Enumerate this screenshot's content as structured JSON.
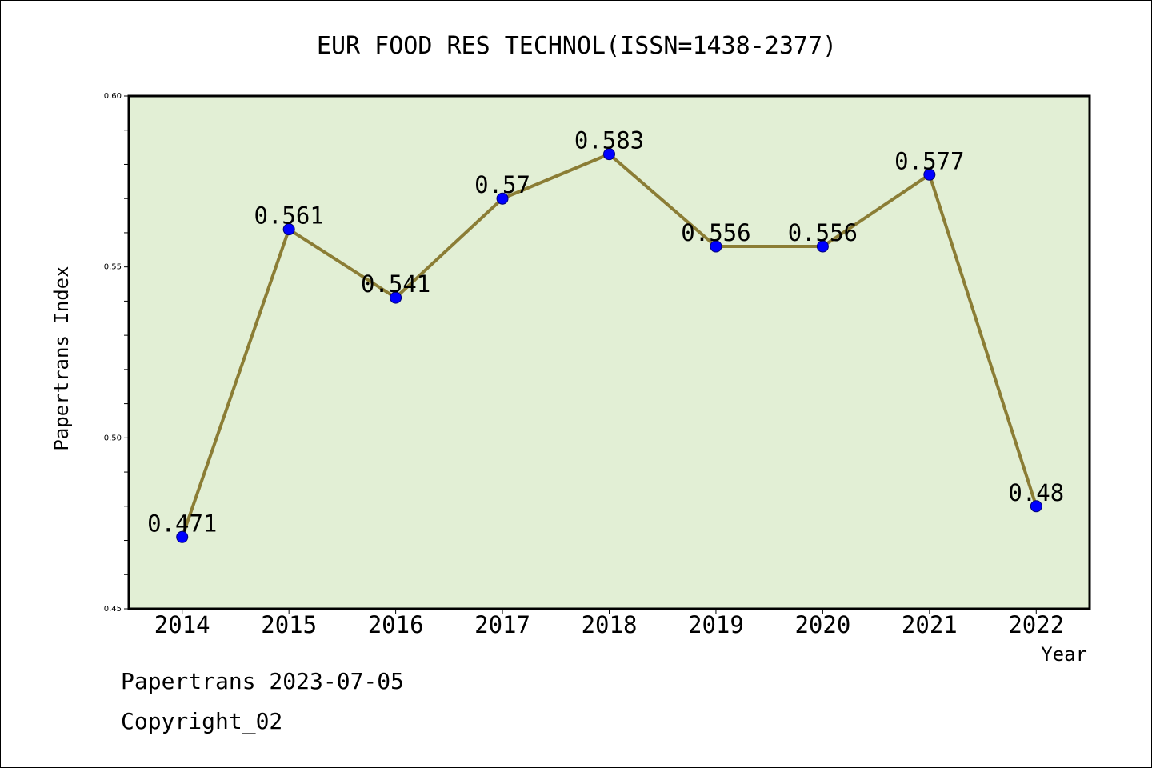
{
  "chart_data": {
    "type": "line",
    "title": "EUR FOOD RES TECHNOL(ISSN=1438-2377)",
    "xlabel": "Year",
    "ylabel": "Papertrans Index",
    "categories": [
      "2014",
      "2015",
      "2016",
      "2017",
      "2018",
      "2019",
      "2020",
      "2021",
      "2022"
    ],
    "values": [
      0.471,
      0.561,
      0.541,
      0.57,
      0.583,
      0.556,
      0.556,
      0.577,
      0.48
    ],
    "data_labels": [
      "0.471",
      "0.561",
      "0.541",
      "0.57",
      "0.583",
      "0.556",
      "0.556",
      "0.577",
      "0.48"
    ],
    "ylim": [
      0.45,
      0.6
    ],
    "yticks": [
      "0.45",
      "0.50",
      "0.55",
      "0.60"
    ],
    "grid": false,
    "legend": "none",
    "colors": {
      "plot_background": "#e2efd5",
      "line": "#8b7d35",
      "marker": "#0000ff"
    }
  },
  "footer": {
    "line1": "Papertrans 2023-07-05",
    "line2": "Copyright_02"
  }
}
